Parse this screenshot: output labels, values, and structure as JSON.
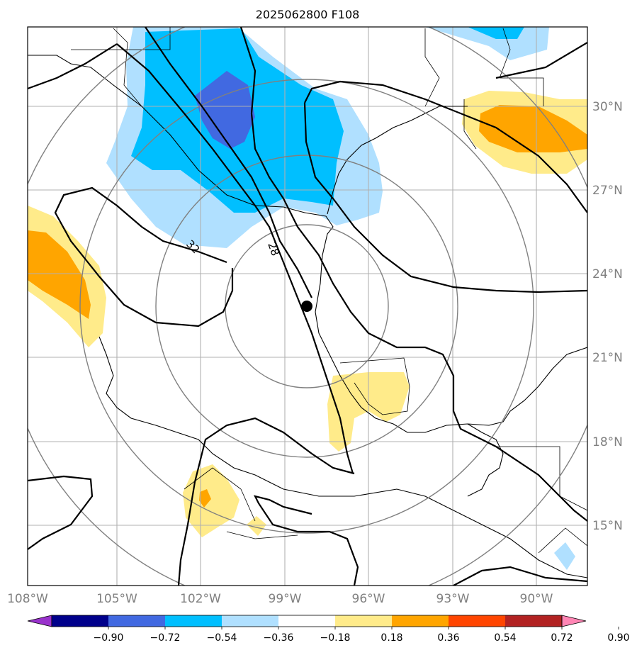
{
  "title": "2025062800 F108",
  "lon_labels": [
    "108°W",
    "105°W",
    "102°W",
    "99°W",
    "96°W",
    "93°W",
    "90°W"
  ],
  "lat_labels": [
    "30°N",
    "27°N",
    "24°N",
    "21°N",
    "18°N",
    "15°N"
  ],
  "contour_labels": [
    "32",
    "28"
  ],
  "colorbar": {
    "tick_labels": [
      "−0.90",
      "−0.72",
      "−0.54",
      "−0.36",
      "−0.18",
      "0.18",
      "0.36",
      "0.54",
      "0.72",
      "0.90"
    ],
    "colors": [
      "#9932cc",
      "#00008b",
      "#4169e1",
      "#00bfff",
      "#b0e0ff",
      "#ffffff",
      "#ffeb8a",
      "#ffa500",
      "#ff4500",
      "#b22222",
      "#ff85b4"
    ]
  },
  "storm_center": {
    "lon": -97.8,
    "lat": 22.8
  },
  "shading_colors": {
    "light_blue": "#b0e0ff",
    "blue": "#00bfff",
    "dark_blue": "#4169e1",
    "light_yellow": "#ffeb8a",
    "orange": "#ffa500"
  }
}
